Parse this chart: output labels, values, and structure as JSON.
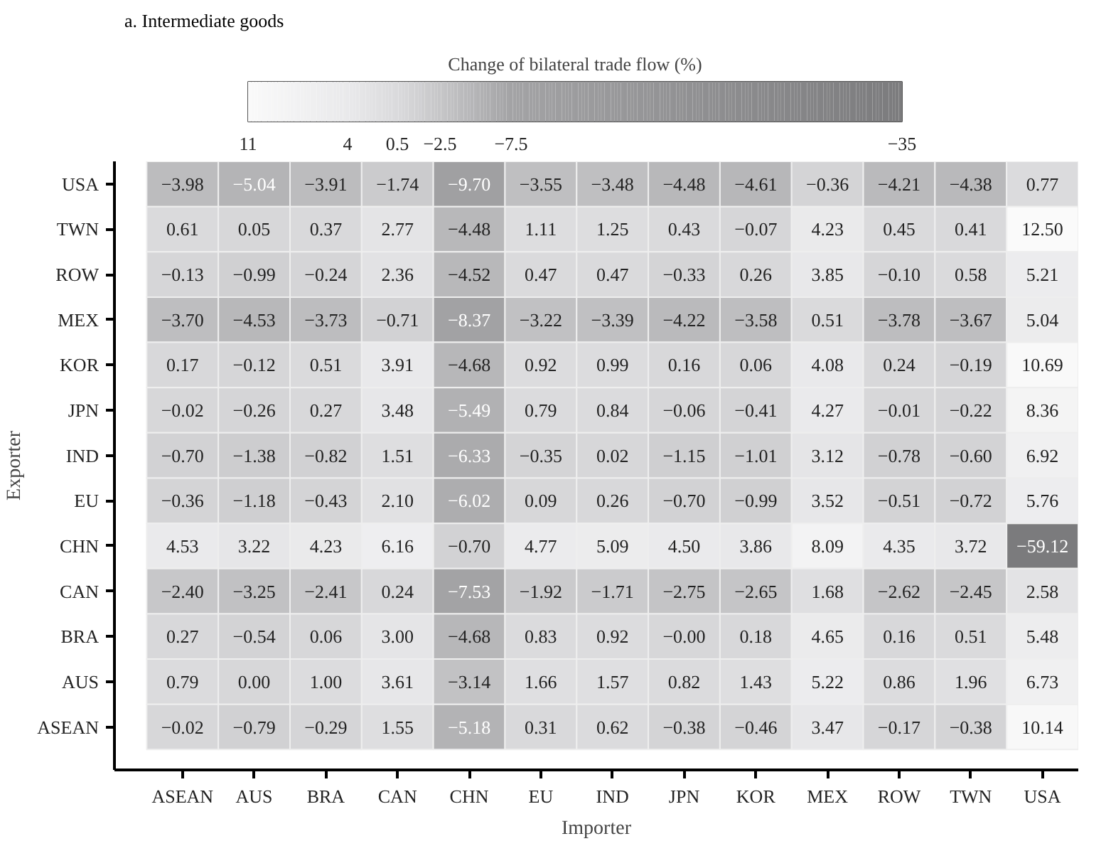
{
  "chart_data": {
    "type": "heatmap",
    "title": "a. Intermediate goods",
    "clabel": "Change of bilateral trade flow (%)",
    "xlabel": "Importer",
    "ylabel": "Exporter",
    "categories": [
      "ASEAN",
      "AUS",
      "BRA",
      "CAN",
      "CHN",
      "EU",
      "IND",
      "JPN",
      "KOR",
      "MEX",
      "ROW",
      "TWN",
      "USA"
    ],
    "y_categories": [
      "USA",
      "TWN",
      "ROW",
      "MEX",
      "KOR",
      "JPN",
      "IND",
      "EU",
      "CHN",
      "CAN",
      "BRA",
      "AUS",
      "ASEAN"
    ],
    "clim": [
      11,
      -35
    ],
    "cticks": [
      {
        "value": 11,
        "label": "11"
      },
      {
        "value": 4,
        "label": "4"
      },
      {
        "value": 0.5,
        "label": "0.5"
      },
      {
        "value": -2.5,
        "label": "−2.5"
      },
      {
        "value": -7.5,
        "label": "−7.5"
      },
      {
        "value": -35,
        "label": "−35"
      }
    ],
    "cells": [
      [
        -3.98,
        -5.04,
        -3.91,
        -1.74,
        -9.7,
        -3.55,
        -3.48,
        -4.48,
        -4.61,
        -0.36,
        -4.21,
        -4.38,
        0.77
      ],
      [
        0.61,
        0.05,
        0.37,
        2.77,
        -4.48,
        1.11,
        1.25,
        0.43,
        -0.07,
        4.23,
        0.45,
        0.41,
        12.5
      ],
      [
        -0.13,
        -0.99,
        -0.24,
        2.36,
        -4.52,
        0.47,
        0.47,
        -0.33,
        0.26,
        3.85,
        -0.1,
        0.58,
        5.21
      ],
      [
        -3.7,
        -4.53,
        -3.73,
        -0.71,
        -8.37,
        -3.22,
        -3.39,
        -4.22,
        -3.58,
        0.51,
        -3.78,
        -3.67,
        5.04
      ],
      [
        0.17,
        -0.12,
        0.51,
        3.91,
        -4.68,
        0.92,
        0.99,
        0.16,
        0.06,
        4.08,
        0.24,
        -0.19,
        10.69
      ],
      [
        -0.02,
        -0.26,
        0.27,
        3.48,
        -5.49,
        0.79,
        0.84,
        -0.06,
        -0.41,
        4.27,
        -0.01,
        -0.22,
        8.36
      ],
      [
        -0.7,
        -1.38,
        -0.82,
        1.51,
        -6.33,
        -0.35,
        0.02,
        -1.15,
        -1.01,
        3.12,
        -0.78,
        -0.6,
        6.92
      ],
      [
        -0.36,
        -1.18,
        -0.43,
        2.1,
        -6.02,
        0.09,
        0.26,
        -0.7,
        -0.99,
        3.52,
        -0.51,
        -0.72,
        5.76
      ],
      [
        4.53,
        3.22,
        4.23,
        6.16,
        -0.7,
        4.77,
        5.09,
        4.5,
        3.86,
        8.09,
        4.35,
        3.72,
        -59.12
      ],
      [
        -2.4,
        -3.25,
        -2.41,
        0.24,
        -7.53,
        -1.92,
        -1.71,
        -2.75,
        -2.65,
        1.68,
        -2.62,
        -2.45,
        2.58
      ],
      [
        0.27,
        -0.54,
        0.06,
        3.0,
        -4.68,
        0.83,
        0.92,
        -0.0,
        0.18,
        4.65,
        0.16,
        0.51,
        5.48
      ],
      [
        0.79,
        0.0,
        1.0,
        3.61,
        -3.14,
        1.66,
        1.57,
        0.82,
        1.43,
        5.22,
        0.86,
        1.96,
        6.73
      ],
      [
        -0.02,
        -0.79,
        -0.29,
        1.55,
        -5.18,
        0.31,
        0.62,
        -0.38,
        -0.46,
        3.47,
        -0.17,
        -0.38,
        10.14
      ]
    ],
    "cell_labels": [
      [
        "−3.98",
        "−5.04",
        "−3.91",
        "−1.74",
        "−9.70",
        "−3.55",
        "−3.48",
        "−4.48",
        "−4.61",
        "−0.36",
        "−4.21",
        "−4.38",
        "0.77"
      ],
      [
        "0.61",
        "0.05",
        "0.37",
        "2.77",
        "−4.48",
        "1.11",
        "1.25",
        "0.43",
        "−0.07",
        "4.23",
        "0.45",
        "0.41",
        "12.50"
      ],
      [
        "−0.13",
        "−0.99",
        "−0.24",
        "2.36",
        "−4.52",
        "0.47",
        "0.47",
        "−0.33",
        "0.26",
        "3.85",
        "−0.10",
        "0.58",
        "5.21"
      ],
      [
        "−3.70",
        "−4.53",
        "−3.73",
        "−0.71",
        "−8.37",
        "−3.22",
        "−3.39",
        "−4.22",
        "−3.58",
        "0.51",
        "−3.78",
        "−3.67",
        "5.04"
      ],
      [
        "0.17",
        "−0.12",
        "0.51",
        "3.91",
        "−4.68",
        "0.92",
        "0.99",
        "0.16",
        "0.06",
        "4.08",
        "0.24",
        "−0.19",
        "10.69"
      ],
      [
        "−0.02",
        "−0.26",
        "0.27",
        "3.48",
        "−5.49",
        "0.79",
        "0.84",
        "−0.06",
        "−0.41",
        "4.27",
        "−0.01",
        "−0.22",
        "8.36"
      ],
      [
        "−0.70",
        "−1.38",
        "−0.82",
        "1.51",
        "−6.33",
        "−0.35",
        "0.02",
        "−1.15",
        "−1.01",
        "3.12",
        "−0.78",
        "−0.60",
        "6.92"
      ],
      [
        "−0.36",
        "−1.18",
        "−0.43",
        "2.10",
        "−6.02",
        "0.09",
        "0.26",
        "−0.70",
        "−0.99",
        "3.52",
        "−0.51",
        "−0.72",
        "5.76"
      ],
      [
        "4.53",
        "3.22",
        "4.23",
        "6.16",
        "−0.70",
        "4.77",
        "5.09",
        "4.50",
        "3.86",
        "8.09",
        "4.35",
        "3.72",
        "−59.12"
      ],
      [
        "−2.40",
        "−3.25",
        "−2.41",
        "0.24",
        "−7.53",
        "−1.92",
        "−1.71",
        "−2.75",
        "−2.65",
        "1.68",
        "−2.62",
        "−2.45",
        "2.58"
      ],
      [
        "0.27",
        "−0.54",
        "0.06",
        "3.00",
        "−4.68",
        "0.83",
        "0.92",
        "−0.00",
        "0.18",
        "4.65",
        "0.16",
        "0.51",
        "5.48"
      ],
      [
        "0.79",
        "0.00",
        "1.00",
        "3.61",
        "−3.14",
        "1.66",
        "1.57",
        "0.82",
        "1.43",
        "5.22",
        "0.86",
        "1.96",
        "6.73"
      ],
      [
        "−0.02",
        "−0.79",
        "−0.29",
        "1.55",
        "−5.18",
        "0.31",
        "0.62",
        "−0.38",
        "−0.46",
        "3.47",
        "−0.17",
        "−0.38",
        "10.14"
      ]
    ]
  }
}
